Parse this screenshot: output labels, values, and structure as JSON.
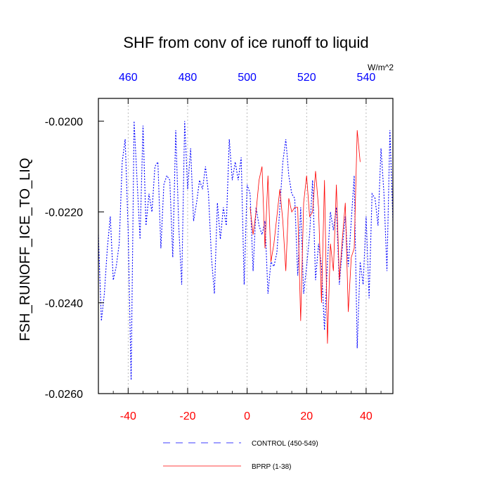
{
  "chart_data": {
    "type": "line",
    "title": "SHF from conv of ice runoff to liquid",
    "ylabel": "FSH_RUNOFF_ICE_TO_LIQ",
    "units": "W/m^2",
    "xlim": [
      -50,
      49
    ],
    "ylim": [
      -0.026,
      -0.0195
    ],
    "bottom_ticks": [
      -40,
      -20,
      0,
      20,
      40
    ],
    "top_ticks": [
      460,
      480,
      500,
      520,
      540
    ],
    "y_ticks": [
      {
        "value": -0.02,
        "label": "-0.0200"
      },
      {
        "value": -0.022,
        "label": "-0.0220"
      },
      {
        "value": -0.024,
        "label": "-0.0240"
      },
      {
        "value": -0.026,
        "label": "-0.0260"
      }
    ],
    "grid_x": [
      -40,
      -20,
      0,
      20,
      40
    ],
    "colors": {
      "control": "#0000ff",
      "bprp": "#ff0000",
      "bottom_ticks": "#ff0000",
      "top_ticks": "#0000ff"
    },
    "series": [
      {
        "name": "CONTROL (450-549)",
        "style": "dashed",
        "x_start": -50,
        "values": [
          -0.0225,
          -0.0244,
          -0.0238,
          -0.0228,
          -0.0221,
          -0.0235,
          -0.0232,
          -0.0227,
          -0.0209,
          -0.0204,
          -0.0224,
          -0.0257,
          -0.02,
          -0.0213,
          -0.0226,
          -0.0201,
          -0.0223,
          -0.0216,
          -0.022,
          -0.021,
          -0.0209,
          -0.0228,
          -0.0214,
          -0.0212,
          -0.0213,
          -0.023,
          -0.0202,
          -0.0223,
          -0.0236,
          -0.02,
          -0.0215,
          -0.0206,
          -0.0222,
          -0.0218,
          -0.0213,
          -0.0215,
          -0.021,
          -0.0216,
          -0.023,
          -0.0238,
          -0.0218,
          -0.0226,
          -0.0219,
          -0.0223,
          -0.0204,
          -0.0213,
          -0.0209,
          -0.0213,
          -0.0208,
          -0.0236,
          -0.0214,
          -0.0216,
          -0.0233,
          -0.0219,
          -0.0223,
          -0.0225,
          -0.0222,
          -0.0238,
          -0.0231,
          -0.0232,
          -0.0229,
          -0.0219,
          -0.0209,
          -0.0204,
          -0.0212,
          -0.0216,
          -0.0217,
          -0.0234,
          -0.0219,
          -0.0238,
          -0.0232,
          -0.0225,
          -0.0213,
          -0.0235,
          -0.0227,
          -0.0232,
          -0.0246,
          -0.0231,
          -0.022,
          -0.0224,
          -0.0219,
          -0.0236,
          -0.0228,
          -0.0221,
          -0.0232,
          -0.0222,
          -0.0212,
          -0.025,
          -0.0231,
          -0.0236,
          -0.0221,
          -0.0239,
          -0.0216,
          -0.0217,
          -0.0223,
          -0.0206,
          -0.0216,
          -0.0233,
          -0.0202,
          -0.0222
        ]
      },
      {
        "name": "BPRP (1-38)",
        "style": "solid",
        "x_start": 1,
        "values": [
          -0.0219,
          -0.0225,
          -0.022,
          -0.0213,
          -0.021,
          -0.0228,
          -0.0212,
          -0.0231,
          -0.0227,
          -0.0221,
          -0.0215,
          -0.0222,
          -0.0233,
          -0.0217,
          -0.022,
          -0.0219,
          -0.0219,
          -0.0244,
          -0.0218,
          -0.0212,
          -0.0221,
          -0.022,
          -0.0211,
          -0.0219,
          -0.024,
          -0.0213,
          -0.0249,
          -0.0227,
          -0.0233,
          -0.0214,
          -0.0235,
          -0.0226,
          -0.0218,
          -0.0242,
          -0.023,
          -0.0228,
          -0.0202,
          -0.0209
        ]
      }
    ],
    "legend": [
      {
        "label": "CONTROL (450-549)",
        "style": "dashed"
      },
      {
        "label": "BPRP (1-38)",
        "style": "solid"
      }
    ]
  }
}
